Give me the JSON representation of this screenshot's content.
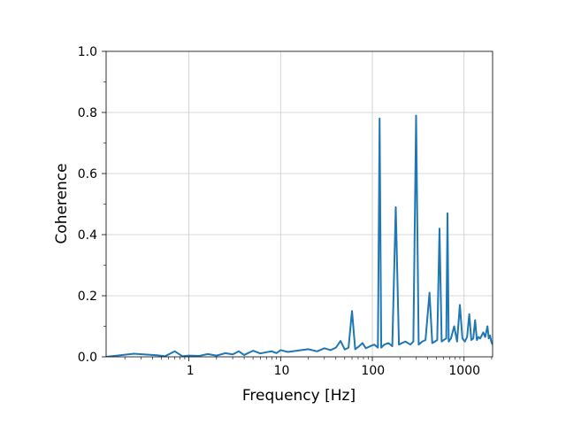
{
  "chart_data": {
    "type": "line",
    "title": "",
    "xlabel": "Frequency [Hz]",
    "ylabel": "Coherence",
    "xscale": "log",
    "xlim": [
      0.125,
      2048
    ],
    "ylim": [
      0,
      1
    ],
    "grid": true,
    "line_color": "#1f77b4",
    "x_tick_labels": [
      "1",
      "10",
      "100",
      "1000"
    ],
    "y_tick_labels": [
      "0.0",
      "0.2",
      "0.4",
      "0.6",
      "0.8",
      "1.0"
    ],
    "series": [
      {
        "x": [
          0.125,
          0.25,
          0.45,
          0.55,
          0.7,
          0.85,
          1.0,
          1.3,
          1.6,
          2.0,
          2.5,
          3.0,
          3.5,
          4.0,
          5.0,
          6.0,
          7.0,
          8.0,
          9.0,
          10.0,
          12.0,
          15.0,
          20.0,
          25.0,
          30.0,
          35.0,
          40.0,
          45.0,
          50.0,
          55.0,
          60.0,
          65.0,
          70.0,
          78.0,
          85.0,
          95.0,
          105.0,
          115.0,
          120.0,
          125.0,
          135.0,
          150.0,
          165.0,
          180.0,
          195.0,
          210.0,
          230.0,
          260.0,
          280.0,
          300.0,
          320.0,
          350.0,
          380.0,
          420.0,
          450.0,
          480.0,
          510.0,
          540.0,
          570.0,
          600.0,
          640.0,
          660.0,
          680.0,
          720.0,
          780.0,
          840.0,
          900.0,
          960.0,
          1020.0,
          1080.0,
          1140.0,
          1200.0,
          1260.0,
          1320.0,
          1380.0,
          1440.0,
          1500.0,
          1560.0,
          1620.0,
          1700.0,
          1800.0,
          1860.0,
          1920.0,
          1980.0,
          2048.0
        ],
        "y": [
          0.0,
          0.01,
          0.005,
          0.002,
          0.018,
          0.002,
          0.004,
          0.003,
          0.009,
          0.004,
          0.012,
          0.008,
          0.018,
          0.006,
          0.02,
          0.011,
          0.015,
          0.018,
          0.012,
          0.022,
          0.016,
          0.02,
          0.025,
          0.018,
          0.028,
          0.022,
          0.03,
          0.052,
          0.024,
          0.03,
          0.15,
          0.025,
          0.032,
          0.045,
          0.028,
          0.035,
          0.04,
          0.03,
          0.78,
          0.03,
          0.04,
          0.045,
          0.035,
          0.49,
          0.04,
          0.045,
          0.05,
          0.04,
          0.05,
          0.79,
          0.04,
          0.05,
          0.055,
          0.21,
          0.045,
          0.05,
          0.055,
          0.42,
          0.05,
          0.055,
          0.06,
          0.47,
          0.05,
          0.06,
          0.1,
          0.05,
          0.17,
          0.06,
          0.05,
          0.065,
          0.14,
          0.055,
          0.06,
          0.12,
          0.055,
          0.065,
          0.06,
          0.07,
          0.08,
          0.065,
          0.1,
          0.06,
          0.07,
          0.05,
          0.04
        ]
      }
    ]
  }
}
